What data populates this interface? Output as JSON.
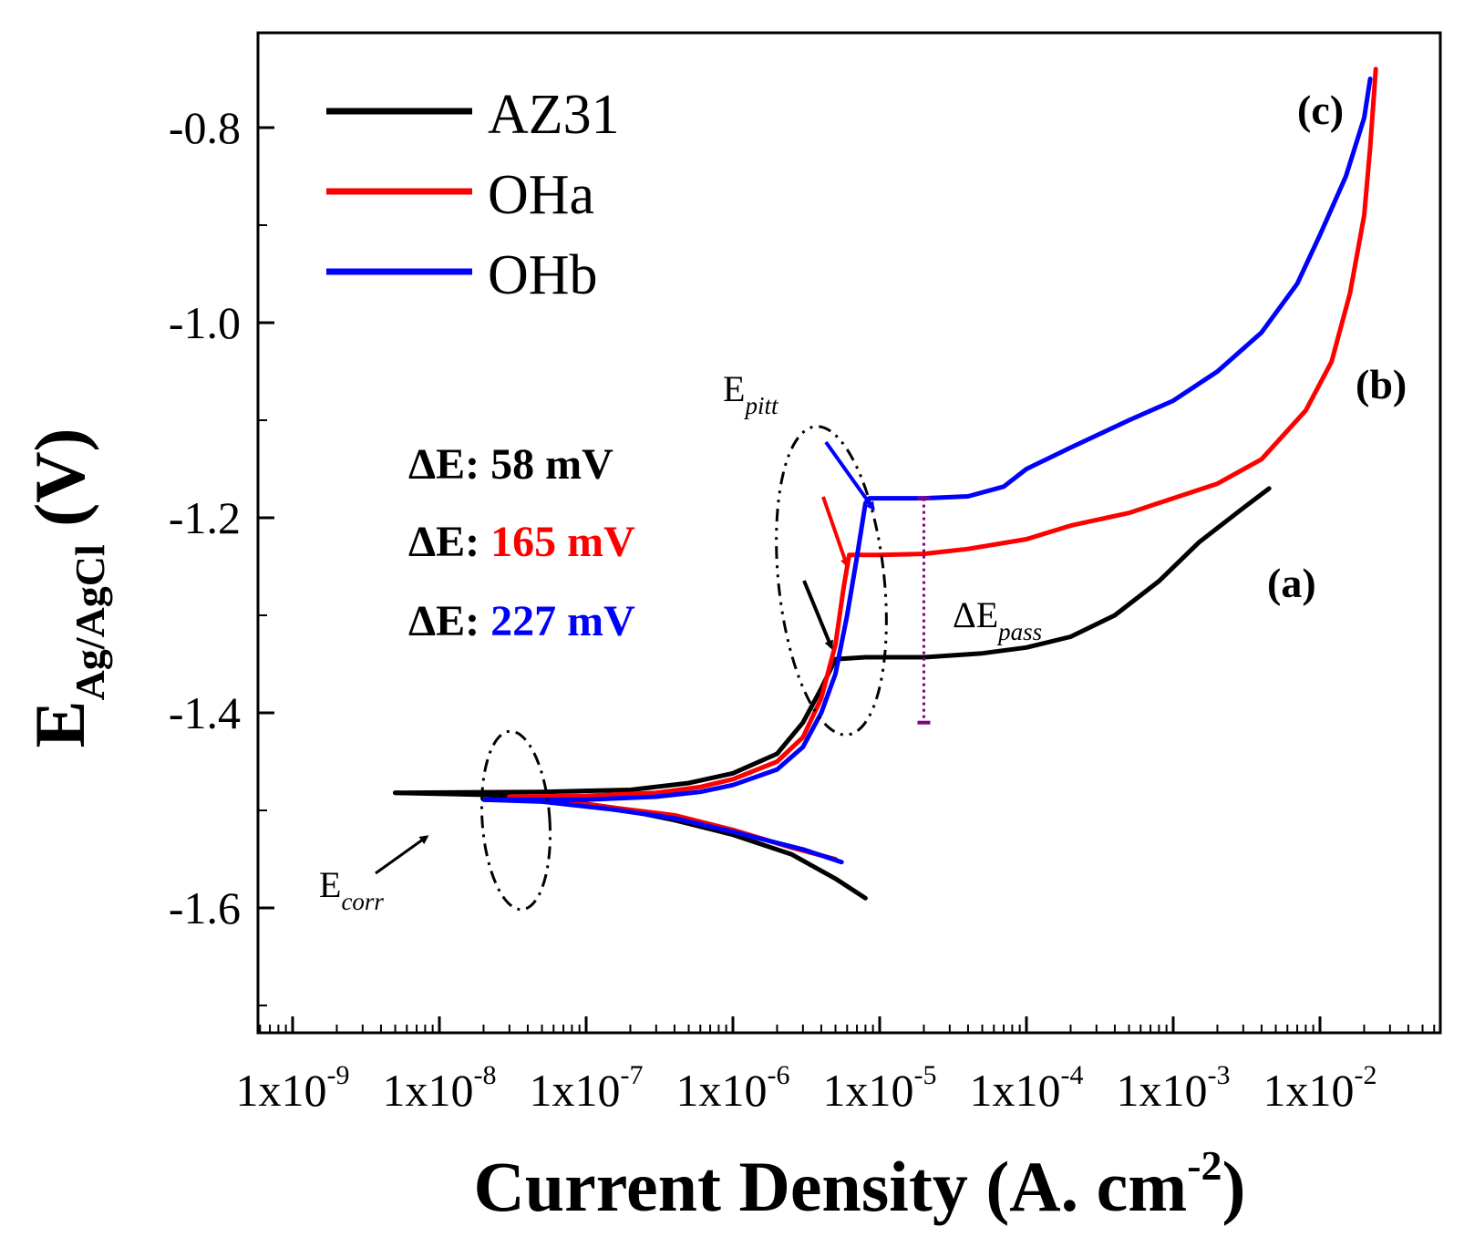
{
  "chart_data": {
    "type": "line",
    "x_scale": "log",
    "xlabel": "Current Density (A. cm",
    "xlabel_sup": "-2",
    "xlabel_close": ")",
    "ylabel_main": "E",
    "ylabel_sub": "Ag/AgCl",
    "ylabel_unit": " (V)",
    "xlim": [
      1e-09,
      0.05
    ],
    "ylim": [
      -1.7,
      -0.74
    ],
    "x_ticks": [
      {
        "value": 1e-09,
        "base": "1x10",
        "exp": "-9"
      },
      {
        "value": 1e-08,
        "base": "1x10",
        "exp": "-8"
      },
      {
        "value": 1e-07,
        "base": "1x10",
        "exp": "-7"
      },
      {
        "value": 1e-06,
        "base": "1x10",
        "exp": "-6"
      },
      {
        "value": 1e-05,
        "base": "1x10",
        "exp": "-5"
      },
      {
        "value": 0.0001,
        "base": "1x10",
        "exp": "-4"
      },
      {
        "value": 0.001,
        "base": "1x10",
        "exp": "-3"
      },
      {
        "value": 0.01,
        "base": "1x10",
        "exp": "-2"
      }
    ],
    "y_ticks": [
      {
        "value": -0.8,
        "label": "-0.8"
      },
      {
        "value": -1.0,
        "label": "-1.0"
      },
      {
        "value": -1.2,
        "label": "-1.2"
      },
      {
        "value": -1.4,
        "label": "-1.4"
      },
      {
        "value": -1.6,
        "label": "-1.6"
      }
    ],
    "y_minor_ticks": [
      -0.7,
      -0.9,
      -1.1,
      -1.3,
      -1.5,
      -1.7
    ],
    "series": [
      {
        "name": "AZ31",
        "color": "#000000",
        "cathodic": [
          [
            8e-06,
            -1.59
          ],
          [
            5e-06,
            -1.57
          ],
          [
            2.5e-06,
            -1.545
          ],
          [
            1e-06,
            -1.525
          ],
          [
            4e-07,
            -1.51
          ],
          [
            1.5e-07,
            -1.497
          ],
          [
            6e-08,
            -1.489
          ],
          [
            2e-08,
            -1.484
          ],
          [
            5e-09,
            -1.482
          ]
        ],
        "anodic": [
          [
            5e-09,
            -1.482
          ],
          [
            5e-08,
            -1.481
          ],
          [
            2e-07,
            -1.479
          ],
          [
            5e-07,
            -1.472
          ],
          [
            1e-06,
            -1.462
          ],
          [
            2e-06,
            -1.442
          ],
          [
            3e-06,
            -1.41
          ],
          [
            4e-06,
            -1.375
          ],
          [
            5e-06,
            -1.345
          ],
          [
            8e-06,
            -1.343
          ],
          [
            2e-05,
            -1.343
          ],
          [
            5e-05,
            -1.339
          ],
          [
            0.0001,
            -1.333
          ],
          [
            0.0002,
            -1.322
          ],
          [
            0.0004,
            -1.3
          ],
          [
            0.0008,
            -1.265
          ],
          [
            0.0015,
            -1.225
          ],
          [
            0.003,
            -1.19
          ],
          [
            0.0045,
            -1.17
          ]
        ]
      },
      {
        "name": "OHa",
        "color": "#ff0000",
        "cathodic": [
          [
            5e-06,
            -1.55
          ],
          [
            2.5e-06,
            -1.538
          ],
          [
            1e-06,
            -1.52
          ],
          [
            4e-07,
            -1.505
          ],
          [
            1.5e-07,
            -1.497
          ],
          [
            5e-08,
            -1.488
          ],
          [
            3e-08,
            -1.486
          ]
        ],
        "anodic": [
          [
            3e-08,
            -1.486
          ],
          [
            1e-07,
            -1.485
          ],
          [
            3e-07,
            -1.482
          ],
          [
            6e-07,
            -1.476
          ],
          [
            1e-06,
            -1.468
          ],
          [
            2e-06,
            -1.45
          ],
          [
            3e-06,
            -1.425
          ],
          [
            4e-06,
            -1.385
          ],
          [
            5e-06,
            -1.33
          ],
          [
            5.7e-06,
            -1.27
          ],
          [
            6.2e-06,
            -1.238
          ],
          [
            1e-05,
            -1.238
          ],
          [
            2e-05,
            -1.237
          ],
          [
            4e-05,
            -1.232
          ],
          [
            0.0001,
            -1.222
          ],
          [
            0.0002,
            -1.208
          ],
          [
            0.0005,
            -1.195
          ],
          [
            0.001,
            -1.18
          ],
          [
            0.002,
            -1.165
          ],
          [
            0.004,
            -1.14
          ],
          [
            0.008,
            -1.09
          ],
          [
            0.012,
            -1.04
          ],
          [
            0.016,
            -0.97
          ],
          [
            0.02,
            -0.89
          ],
          [
            0.022,
            -0.82
          ],
          [
            0.024,
            -0.74
          ]
        ]
      },
      {
        "name": "OHb",
        "color": "#0000ff",
        "cathodic": [
          [
            5.5e-06,
            -1.553
          ],
          [
            3e-06,
            -1.54
          ],
          [
            1e-06,
            -1.522
          ],
          [
            4e-07,
            -1.508
          ],
          [
            1.5e-07,
            -1.499
          ],
          [
            5e-08,
            -1.491
          ],
          [
            2e-08,
            -1.489
          ]
        ],
        "anodic": [
          [
            2e-08,
            -1.489
          ],
          [
            1e-07,
            -1.489
          ],
          [
            3e-07,
            -1.486
          ],
          [
            6e-07,
            -1.481
          ],
          [
            1e-06,
            -1.474
          ],
          [
            2e-06,
            -1.458
          ],
          [
            3e-06,
            -1.435
          ],
          [
            4e-06,
            -1.4
          ],
          [
            5e-06,
            -1.36
          ],
          [
            6e-06,
            -1.3
          ],
          [
            7e-06,
            -1.24
          ],
          [
            8e-06,
            -1.185
          ],
          [
            8.5e-06,
            -1.18
          ],
          [
            2e-05,
            -1.18
          ],
          [
            4e-05,
            -1.178
          ],
          [
            7e-05,
            -1.168
          ],
          [
            0.0001,
            -1.15
          ],
          [
            0.0002,
            -1.128
          ],
          [
            0.0005,
            -1.1
          ],
          [
            0.001,
            -1.08
          ],
          [
            0.002,
            -1.05
          ],
          [
            0.004,
            -1.01
          ],
          [
            0.007,
            -0.96
          ],
          [
            0.01,
            -0.91
          ],
          [
            0.015,
            -0.85
          ],
          [
            0.02,
            -0.79
          ],
          [
            0.022,
            -0.75
          ]
        ]
      }
    ],
    "legend": {
      "placement": "top-left",
      "entries": [
        {
          "label": "AZ31",
          "color": "#000000"
        },
        {
          "label": "OHa",
          "color": "#ff0000"
        },
        {
          "label": "OHb",
          "color": "#0000ff"
        }
      ]
    },
    "delta_e": [
      {
        "prefix": "ΔE: ",
        "value": "58 mV",
        "color": "#000000"
      },
      {
        "prefix": "ΔE: ",
        "value": "165 mV",
        "color": "#ff0000"
      },
      {
        "prefix": "ΔE: ",
        "value": "227 mV",
        "color": "#0000ff"
      }
    ],
    "annotations": {
      "curve_a": "(a)",
      "curve_b": "(b)",
      "curve_c": "(c)",
      "e_pitt_main": "E",
      "e_pitt_sub": "pitt",
      "e_corr_main": "E",
      "e_corr_sub": "corr",
      "delta_e_pass_main": "ΔE",
      "delta_e_pass_sub": "pass",
      "delta_e_pass_color": "#800080",
      "delta_e_pass_x": 2e-05,
      "delta_e_pass_range": [
        -1.18,
        -1.41
      ]
    }
  }
}
